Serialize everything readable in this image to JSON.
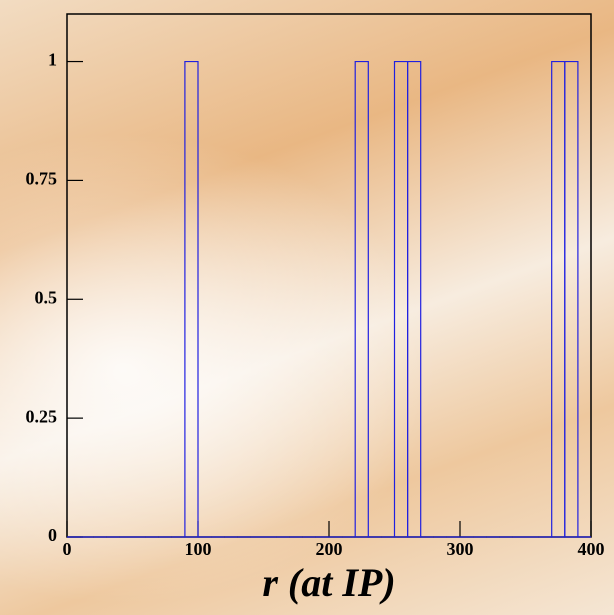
{
  "chart_data": {
    "type": "histogram",
    "x_label": "r (at IP)",
    "bins": [
      0,
      10,
      20,
      30,
      40,
      50,
      60,
      70,
      80,
      90,
      100,
      110,
      120,
      130,
      140,
      150,
      160,
      170,
      180,
      190,
      200,
      210,
      220,
      230,
      240,
      250,
      260,
      270,
      280,
      290,
      300,
      310,
      320,
      330,
      340,
      350,
      360,
      370,
      380,
      390,
      400
    ],
    "values": [
      0,
      0,
      0,
      0,
      0,
      0,
      0,
      0,
      0,
      1,
      0,
      0,
      0,
      0,
      0,
      0,
      0,
      0,
      0,
      0,
      0,
      0,
      1,
      0,
      0,
      1,
      1,
      0,
      0,
      0,
      0,
      0,
      0,
      0,
      0,
      0,
      0,
      1,
      1,
      0
    ],
    "color": "#2020e0",
    "xlim": [
      0,
      400
    ],
    "xticks": [
      0,
      100,
      200,
      300,
      400
    ],
    "ylim": [
      0,
      1.1
    ],
    "yticks": [
      0,
      0.25,
      0.5,
      0.75,
      1
    ]
  }
}
